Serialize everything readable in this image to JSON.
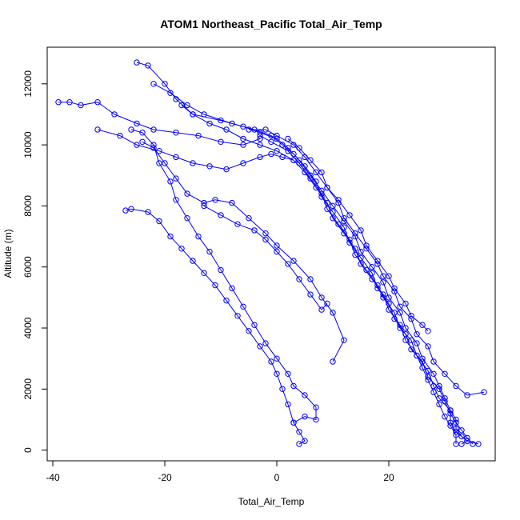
{
  "chart_data": {
    "type": "scatter",
    "title": "ATOM1 Northeast_Pacific Total_Air_Temp",
    "xlabel": "Total_Air_Temp",
    "ylabel": "Altitude (m)",
    "xlim": [
      -41,
      39
    ],
    "ylim": [
      -350,
      13200
    ],
    "xticks": [
      -40,
      -20,
      0,
      20
    ],
    "yticks": [
      0,
      2000,
      4000,
      6000,
      8000,
      10000,
      12000
    ],
    "grid": false,
    "legend": "none",
    "marker": "open-circle",
    "connected": true,
    "color": "#0000ff",
    "series": [
      {
        "points": [
          [
            33,
            200
          ],
          [
            34,
            300
          ],
          [
            33,
            450
          ],
          [
            32,
            700
          ],
          [
            32,
            1000
          ],
          [
            31,
            1300
          ],
          [
            30,
            1700
          ],
          [
            29,
            2100
          ],
          [
            28,
            2500
          ],
          [
            26,
            3000
          ],
          [
            25,
            3500
          ],
          [
            23,
            4000
          ],
          [
            22,
            4500
          ],
          [
            20,
            5000
          ],
          [
            19,
            5500
          ],
          [
            17,
            6000
          ],
          [
            15,
            6500
          ],
          [
            14,
            7000
          ],
          [
            12,
            7500
          ],
          [
            10,
            8000
          ],
          [
            8,
            8500
          ],
          [
            6,
            9000
          ],
          [
            4,
            9500
          ],
          [
            2,
            9900
          ],
          [
            0,
            10200
          ],
          [
            -3,
            10400
          ],
          [
            -6,
            10600
          ],
          [
            -10,
            10800
          ],
          [
            -15,
            11000
          ],
          [
            -18,
            11500
          ],
          [
            -20,
            12000
          ],
          [
            -23,
            12600
          ],
          [
            -25,
            12700
          ]
        ]
      },
      {
        "points": [
          [
            35,
            200
          ],
          [
            34,
            400
          ],
          [
            33,
            650
          ],
          [
            32,
            900
          ],
          [
            31,
            1200
          ],
          [
            30,
            1600
          ],
          [
            29,
            2000
          ],
          [
            27,
            2400
          ],
          [
            26,
            2900
          ],
          [
            24,
            3300
          ],
          [
            23,
            3800
          ],
          [
            21,
            4300
          ],
          [
            20,
            4800
          ],
          [
            18,
            5300
          ],
          [
            17,
            5800
          ],
          [
            15,
            6300
          ],
          [
            13,
            6800
          ],
          [
            12,
            7300
          ],
          [
            10,
            7800
          ],
          [
            8,
            8300
          ],
          [
            7,
            8800
          ],
          [
            5,
            9300
          ],
          [
            3,
            9700
          ],
          [
            1,
            10000
          ],
          [
            -1,
            10300
          ],
          [
            -4,
            10500
          ],
          [
            -8,
            10700
          ],
          [
            -13,
            11000
          ],
          [
            -16,
            11300
          ],
          [
            -19,
            11700
          ],
          [
            -22,
            12000
          ]
        ]
      },
      {
        "points": [
          [
            37,
            1900
          ],
          [
            34,
            1800
          ],
          [
            32,
            2100
          ],
          [
            30,
            2500
          ],
          [
            28,
            2900
          ],
          [
            27,
            3400
          ],
          [
            25,
            3800
          ],
          [
            24,
            4300
          ],
          [
            22,
            4700
          ],
          [
            21,
            5200
          ],
          [
            19,
            5700
          ],
          [
            18,
            6100
          ],
          [
            16,
            6600
          ],
          [
            14,
            7100
          ],
          [
            12,
            7600
          ],
          [
            11,
            8100
          ],
          [
            9,
            8600
          ],
          [
            7,
            9100
          ],
          [
            5,
            9600
          ],
          [
            3,
            10000
          ],
          [
            0,
            10300
          ],
          [
            -2,
            10500
          ],
          [
            -5,
            10500
          ]
        ]
      },
      {
        "points": [
          [
            32,
            200
          ],
          [
            32,
            500
          ],
          [
            31,
            800
          ],
          [
            30,
            1100
          ],
          [
            29,
            1500
          ],
          [
            28,
            1900
          ],
          [
            27,
            2300
          ],
          [
            26,
            2700
          ],
          [
            25,
            3100
          ],
          [
            24,
            3600
          ],
          [
            22,
            4000
          ],
          [
            21,
            4500
          ],
          [
            19,
            5000
          ],
          [
            18,
            5400
          ],
          [
            16,
            5900
          ],
          [
            14,
            6400
          ],
          [
            13,
            6900
          ],
          [
            11,
            7400
          ],
          [
            9,
            7900
          ],
          [
            8,
            8400
          ],
          [
            6,
            8900
          ],
          [
            4,
            9400
          ],
          [
            2,
            9800
          ],
          [
            -1,
            10100
          ],
          [
            -3,
            10300
          ]
        ]
      },
      {
        "points": [
          [
            36,
            200
          ],
          [
            34,
            300
          ],
          [
            32,
            600
          ],
          [
            31,
            900
          ],
          [
            31,
            1300
          ],
          [
            29,
            1700
          ],
          [
            28,
            2100
          ],
          [
            27,
            2600
          ],
          [
            25,
            3100
          ],
          [
            23,
            3600
          ],
          [
            22,
            4100
          ],
          [
            20,
            4600
          ],
          [
            19,
            5100
          ],
          [
            17,
            5600
          ],
          [
            15,
            6100
          ],
          [
            14,
            6600
          ],
          [
            12,
            7100
          ],
          [
            10,
            7600
          ],
          [
            9,
            8100
          ],
          [
            7,
            8600
          ],
          [
            5,
            9100
          ],
          [
            3,
            9500
          ],
          [
            0,
            9800
          ],
          [
            -3,
            10000
          ],
          [
            -6,
            10200
          ],
          [
            -9,
            10500
          ],
          [
            -12,
            10700
          ],
          [
            -15,
            11000
          ],
          [
            -17,
            11300
          ]
        ]
      },
      {
        "points": [
          [
            4,
            200
          ],
          [
            5,
            300
          ],
          [
            4,
            600
          ],
          [
            3,
            900
          ],
          [
            5,
            1100
          ],
          [
            7,
            1000
          ],
          [
            7,
            1400
          ],
          [
            5,
            1800
          ],
          [
            3,
            2100
          ],
          [
            2,
            2500
          ],
          [
            0,
            3000
          ],
          [
            -2,
            3500
          ],
          [
            -4,
            4100
          ],
          [
            -6,
            4700
          ],
          [
            -8,
            5300
          ],
          [
            -10,
            5900
          ],
          [
            -12,
            6500
          ],
          [
            -14,
            7000
          ],
          [
            -16,
            7600
          ],
          [
            -18,
            8200
          ],
          [
            -19,
            8800
          ],
          [
            -21,
            9400
          ],
          [
            -22,
            10000
          ],
          [
            -24,
            10400
          ],
          [
            -26,
            10500
          ]
        ]
      },
      {
        "points": [
          [
            3,
            900
          ],
          [
            2,
            1500
          ],
          [
            1,
            2000
          ],
          [
            0,
            2500
          ],
          [
            -1,
            2900
          ],
          [
            -3,
            3400
          ],
          [
            -5,
            3900
          ],
          [
            -7,
            4400
          ],
          [
            -9,
            4900
          ],
          [
            -11,
            5400
          ],
          [
            -13,
            5800
          ],
          [
            -15,
            6200
          ],
          [
            -17,
            6600
          ],
          [
            -19,
            7000
          ],
          [
            -21,
            7500
          ],
          [
            -23,
            7800
          ],
          [
            -26,
            7900
          ],
          [
            -27,
            7850
          ]
        ]
      },
      {
        "points": [
          [
            10,
            2900
          ],
          [
            12,
            3600
          ],
          [
            10,
            4500
          ],
          [
            8,
            5000
          ],
          [
            6,
            5600
          ],
          [
            3,
            6200
          ],
          [
            0,
            6700
          ],
          [
            -2,
            7100
          ],
          [
            -5,
            7600
          ],
          [
            -8,
            8100
          ],
          [
            -11,
            8200
          ],
          [
            -13,
            8100
          ],
          [
            -16,
            8400
          ],
          [
            -18,
            8900
          ],
          [
            -20,
            9400
          ],
          [
            -22,
            9900
          ],
          [
            -24,
            10100
          ]
        ]
      },
      {
        "points": [
          [
            -39,
            11400
          ],
          [
            -37,
            11400
          ],
          [
            -35,
            11300
          ],
          [
            -32,
            11400
          ],
          [
            -29,
            11000
          ],
          [
            -25,
            10700
          ],
          [
            -22,
            10500
          ],
          [
            -18,
            10400
          ],
          [
            -14,
            10300
          ],
          [
            -10,
            10100
          ],
          [
            -6,
            10000
          ],
          [
            -3,
            10200
          ]
        ]
      },
      {
        "points": [
          [
            -32,
            10500
          ],
          [
            -28,
            10300
          ],
          [
            -25,
            10000
          ],
          [
            -21,
            9800
          ],
          [
            -18,
            9600
          ],
          [
            -15,
            9400
          ],
          [
            -12,
            9300
          ],
          [
            -9,
            9200
          ],
          [
            -6,
            9400
          ],
          [
            -3,
            9600
          ],
          [
            -1,
            9700
          ],
          [
            1,
            9600
          ],
          [
            3,
            9500
          ]
        ]
      },
      {
        "points": [
          [
            9,
            4800
          ],
          [
            8,
            4600
          ],
          [
            6,
            5100
          ],
          [
            4,
            5600
          ],
          [
            2,
            6100
          ],
          [
            0,
            6500
          ],
          [
            -2,
            6900
          ],
          [
            -4,
            7200
          ],
          [
            -7,
            7400
          ],
          [
            -10,
            7700
          ],
          [
            -13,
            8000
          ]
        ]
      },
      {
        "points": [
          [
            27,
            3900
          ],
          [
            26,
            4100
          ],
          [
            24,
            4400
          ],
          [
            23,
            4800
          ],
          [
            21,
            5300
          ],
          [
            20,
            5700
          ],
          [
            18,
            6200
          ],
          [
            16,
            6700
          ],
          [
            15,
            7200
          ],
          [
            13,
            7700
          ],
          [
            11,
            8200
          ],
          [
            9,
            8600
          ],
          [
            8,
            9100
          ],
          [
            6,
            9500
          ],
          [
            4,
            9900
          ],
          [
            2,
            10200
          ]
        ]
      }
    ]
  }
}
